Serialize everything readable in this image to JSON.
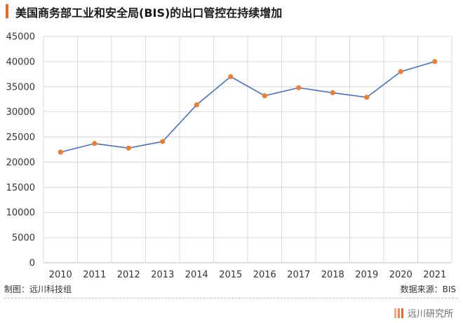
{
  "header": {
    "title": "美国商务部工业和安全局(BIS)的出口管控在持续增加"
  },
  "footer": {
    "left": "制图：远川科技组",
    "right": "数据来源：BIS",
    "brand": "远川研究所"
  },
  "colors": {
    "accent": "#e8672a",
    "line": "#4472c4",
    "marker": "#ed7d31",
    "grid": "#d9d9d9",
    "axis_text": "#333333"
  },
  "chart_data": {
    "type": "line",
    "title": "美国商务部工业和安全局(BIS)的出口管控在持续增加",
    "xlabel": "",
    "ylabel": "",
    "x": [
      "2010",
      "2011",
      "2012",
      "2013",
      "2014",
      "2015",
      "2016",
      "2017",
      "2018",
      "2019",
      "2020",
      "2021"
    ],
    "series": [
      {
        "values": [
          22000,
          23700,
          22800,
          24100,
          31400,
          37000,
          33200,
          34800,
          33800,
          32900,
          38000,
          40000
        ]
      }
    ],
    "ylim": [
      0,
      45000
    ],
    "yticks": [
      0,
      5000,
      10000,
      15000,
      20000,
      25000,
      30000,
      35000,
      40000,
      45000
    ],
    "grid": true,
    "legend": "none"
  }
}
